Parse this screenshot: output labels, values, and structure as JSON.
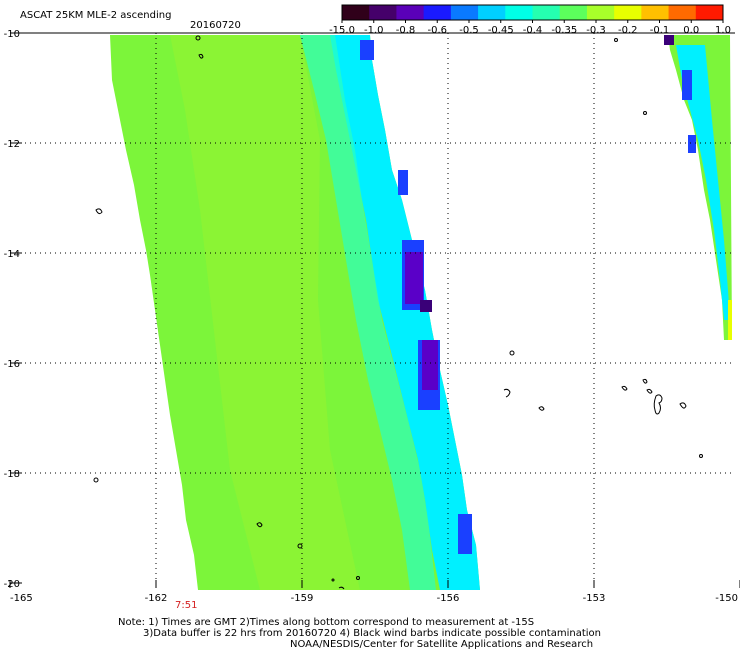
{
  "header": {
    "title": "ASCAT 25KM MLE-2 ascending",
    "date": "20160720"
  },
  "colorbar": {
    "labels": [
      "-15.0",
      "-1.0",
      "-0.8",
      "-0.6",
      "-0.5",
      "-0.45",
      "-0.4",
      "-0.35",
      "-0.3",
      "-0.2",
      "-0.1",
      "0.0",
      "1.0"
    ],
    "colors": [
      "#30001a",
      "#45006a",
      "#5a00b8",
      "#1a1aff",
      "#0a7aff",
      "#00d0ff",
      "#00ffe6",
      "#25ffb0",
      "#5cff5c",
      "#a8ff2a",
      "#e8ff00",
      "#ffc000",
      "#ff6a00",
      "#ff1a00"
    ]
  },
  "axes": {
    "y_labels": [
      "-10",
      "-12",
      "-14",
      "-16",
      "-18",
      "-20"
    ],
    "x_labels": [
      "-165",
      "-162",
      "-159",
      "-156",
      "-153",
      "-150"
    ]
  },
  "time_label": "7:51",
  "notes": {
    "line1": "Note: 1) Times are GMT 2)Times along bottom correspond to measurement at -15S",
    "line2": "3)Data buffer is 22 hrs from 20160720 4) Black wind barbs indicate possible contamination",
    "line3": "NOAA/NESDIS/Center for Satellite Applications and Research"
  },
  "colors": {
    "swath_main": "#7cf53a",
    "swath_light": "#9ef52e",
    "cyan": "#00f0ff",
    "teal": "#2affc0",
    "blue": "#1a40ff",
    "violet": "#5a00c8",
    "purple": "#3a0078",
    "time_label": "#d42020"
  }
}
